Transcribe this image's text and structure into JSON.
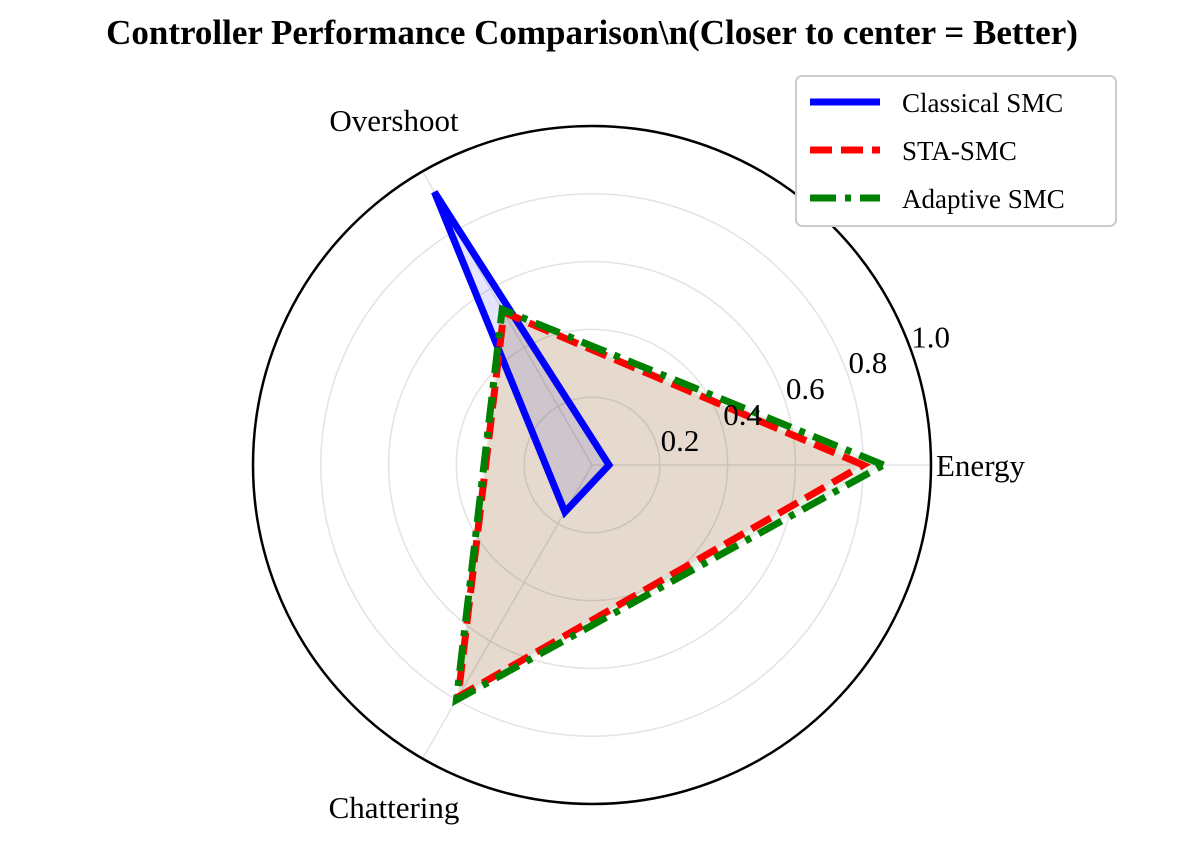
{
  "chart_data": {
    "type": "radar",
    "title": "Controller Performance Comparison\\n(Closer to center = Better)",
    "axes": [
      "Energy",
      "Overshoot",
      "Chattering"
    ],
    "rlim": [
      0,
      1.0
    ],
    "rticks": [
      0.2,
      0.4,
      0.6,
      0.8,
      1.0
    ],
    "rtick_labels": [
      "0.2",
      "0.4",
      "0.6",
      "0.8",
      "1.0"
    ],
    "grid": true,
    "legend_position": "top-right",
    "series": [
      {
        "name": "Classical SMC",
        "values": [
          0.05,
          0.93,
          0.16
        ],
        "color": "#0000ff",
        "line_style": "solid"
      },
      {
        "name": "STA-SMC",
        "values": [
          0.8,
          0.52,
          0.79
        ],
        "color": "#ff0000",
        "line_style": "dashed"
      },
      {
        "name": "Adaptive SMC",
        "values": [
          0.86,
          0.53,
          0.8
        ],
        "color": "#008000",
        "line_style": "dashdot"
      }
    ]
  }
}
